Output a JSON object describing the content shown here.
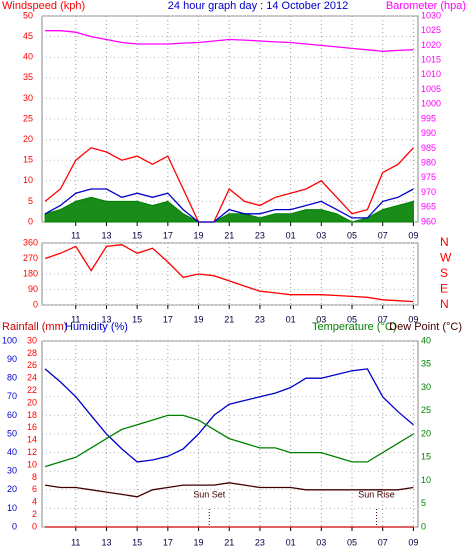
{
  "chart_data": [
    {
      "type": "line",
      "title": "24 hour graph day : 14 October 2012",
      "ylabel": "Windspeed (kph)",
      "y2label": "Barometer (hpa)",
      "x": [
        9,
        10,
        11,
        12,
        13,
        14,
        15,
        16,
        17,
        18,
        19,
        20,
        21,
        22,
        23,
        24,
        25,
        26,
        27,
        28,
        29,
        30,
        31,
        32,
        33
      ],
      "xlim": [
        8.8,
        33.3
      ],
      "xticks": [
        11,
        13,
        15,
        17,
        19,
        21,
        23,
        {
          "value": 25,
          "label": "01"
        },
        {
          "value": 27,
          "label": "03"
        },
        {
          "value": 29,
          "label": "05"
        },
        {
          "value": 31,
          "label": "07"
        },
        {
          "value": 33,
          "label": "09"
        }
      ],
      "ylim": [
        0,
        50
      ],
      "yticks": [
        0,
        5,
        10,
        15,
        20,
        25,
        30,
        35,
        40,
        45,
        50
      ],
      "y2lim": [
        960,
        1030
      ],
      "y2ticks": [
        960,
        965,
        970,
        975,
        980,
        985,
        990,
        995,
        1000,
        1005,
        1010,
        1015,
        1020,
        1025,
        1030
      ],
      "grid": true,
      "y_color": "#ff0000",
      "y2_color": "#ff00ff",
      "series": [
        {
          "color": "#ff0000",
          "values": [
            5,
            8,
            15,
            18,
            17,
            15,
            16,
            14,
            16,
            8,
            0,
            0,
            8,
            5,
            4,
            6,
            7,
            8,
            10,
            6,
            2,
            3,
            12,
            14,
            18
          ]
        },
        {
          "color": "#008000",
          "area": true,
          "values": [
            2,
            3,
            5,
            6,
            5,
            5,
            5,
            4,
            5,
            2,
            0,
            0,
            2,
            2,
            1,
            2,
            2,
            3,
            3,
            2,
            0,
            1,
            3,
            4,
            5
          ]
        },
        {
          "color": "#0000cc",
          "values": [
            2,
            4,
            7,
            8,
            8,
            6,
            7,
            6,
            7,
            3,
            0,
            0,
            3,
            2,
            2,
            3,
            3,
            4,
            5,
            3,
            1,
            1,
            5,
            6,
            8
          ]
        },
        {
          "color": "#ff00ff",
          "axis": "y2",
          "values": [
            1025,
            1025,
            1024.5,
            1023,
            1022,
            1021,
            1020.5,
            1020.5,
            1020.5,
            1020.8,
            1021,
            1021.5,
            1022,
            1021.8,
            1021.5,
            1021.2,
            1021,
            1020.5,
            1020,
            1019.5,
            1019,
            1018.5,
            1018,
            1018.3,
            1018.5
          ]
        }
      ]
    },
    {
      "type": "line",
      "x": [
        9,
        10,
        11,
        12,
        13,
        14,
        15,
        16,
        17,
        18,
        19,
        20,
        21,
        22,
        23,
        24,
        25,
        26,
        27,
        28,
        29,
        30,
        31,
        32,
        33
      ],
      "xlim": [
        8.8,
        33.3
      ],
      "xticks": [
        11,
        13,
        15,
        17,
        19,
        21,
        23,
        {
          "value": 25,
          "label": "01"
        },
        {
          "value": 27,
          "label": "03"
        },
        {
          "value": 29,
          "label": "05"
        },
        {
          "value": 31,
          "label": "07"
        },
        {
          "value": 33,
          "label": "09"
        }
      ],
      "ylim": [
        0,
        360
      ],
      "yticks": [
        0,
        90,
        180,
        270,
        360
      ],
      "y2lim": [
        0,
        360
      ],
      "y2ticks": [
        {
          "value": 360,
          "label": "N"
        },
        {
          "value": 270,
          "label": "W"
        },
        {
          "value": 180,
          "label": "S"
        },
        {
          "value": 90,
          "label": "E"
        },
        {
          "value": 0,
          "label": "N"
        }
      ],
      "grid": true,
      "y_color": "#ff0000",
      "y2_color": "#ff0000",
      "series": [
        {
          "color": "#ff0000",
          "values": [
            270,
            300,
            340,
            200,
            340,
            350,
            300,
            330,
            250,
            160,
            180,
            170,
            140,
            110,
            80,
            70,
            60,
            60,
            60,
            55,
            50,
            45,
            30,
            25,
            20
          ]
        }
      ]
    },
    {
      "type": "line",
      "x": [
        9,
        10,
        11,
        12,
        13,
        14,
        15,
        16,
        17,
        18,
        19,
        20,
        21,
        22,
        23,
        24,
        25,
        26,
        27,
        28,
        29,
        30,
        31,
        32,
        33
      ],
      "xlim": [
        8.8,
        33.3
      ],
      "xticks": [
        11,
        13,
        15,
        17,
        19,
        21,
        23,
        {
          "value": 25,
          "label": "01"
        },
        {
          "value": 27,
          "label": "03"
        },
        {
          "value": 29,
          "label": "05"
        },
        {
          "value": 31,
          "label": "07"
        },
        {
          "value": 33,
          "label": "09"
        }
      ],
      "ylim": [
        0,
        100
      ],
      "yticks": [
        0,
        10,
        20,
        30,
        40,
        50,
        60,
        70,
        80,
        90,
        100
      ],
      "y3lim": [
        0,
        30
      ],
      "y3ticks": [
        0,
        2,
        4,
        6,
        8,
        10,
        12,
        14,
        16,
        18,
        20,
        22,
        24,
        26,
        28,
        30
      ],
      "y2lim": [
        0,
        40
      ],
      "y2ticks": [
        0,
        5,
        10,
        15,
        20,
        25,
        30,
        35,
        40
      ],
      "grid": true,
      "y_color": "#0000cc",
      "y3_color": "#ff0000",
      "y2_color": "#008000",
      "series": [
        {
          "name": "Rainfall (mm)",
          "color": "#cc0000",
          "axis": "y3",
          "values": [
            0,
            0,
            0,
            0,
            0,
            0,
            0,
            0,
            0,
            0,
            0,
            0,
            0,
            0,
            0,
            0,
            0,
            0,
            0,
            0,
            0,
            0,
            0,
            0,
            0
          ]
        },
        {
          "name": "Humidity (%)",
          "color": "#0000cc",
          "values": [
            85,
            78,
            70,
            60,
            50,
            42,
            35,
            36,
            38,
            42,
            50,
            60,
            66,
            68,
            70,
            72,
            75,
            80,
            80,
            82,
            84,
            85,
            70,
            62,
            55
          ]
        },
        {
          "name": "Temperature (°C)",
          "color": "#008000",
          "axis": "y2",
          "values": [
            13,
            14,
            15,
            17,
            19,
            21,
            22,
            23,
            24,
            24,
            23,
            21,
            19,
            18,
            17,
            17,
            16,
            16,
            16,
            15,
            14,
            14,
            16,
            18,
            20
          ]
        },
        {
          "name": "Dew Point (°C)",
          "color": "#400000",
          "axis": "y2",
          "values": [
            9,
            8.5,
            8.5,
            8,
            7.5,
            7,
            6.5,
            8,
            8.5,
            9,
            9,
            9,
            9.5,
            9,
            8.5,
            8.5,
            8.5,
            8,
            8,
            8,
            8,
            8,
            8,
            8,
            8.5
          ]
        }
      ],
      "annotations": [
        {
          "text": "Sun Set",
          "x": 19.7
        },
        {
          "text": "Sun Rise",
          "x": 30.6
        }
      ]
    }
  ]
}
